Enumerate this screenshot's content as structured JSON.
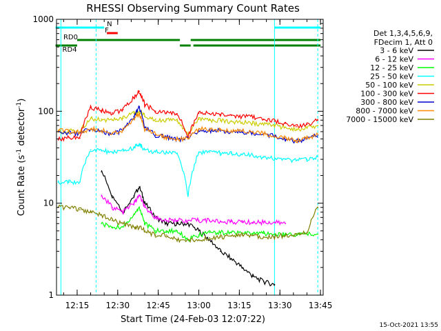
{
  "chart_data": {
    "type": "line",
    "title": "RHESSI Observing Summary Count Rates",
    "xlabel": "Start Time (24-Feb-03 12:07:22)",
    "ylabel": "Count Rate (s⁻¹ detector⁻¹)",
    "ylabel_main": "Count Rate (s",
    "ylabel_sup1": "-1",
    "ylabel_mid": " detector",
    "ylabel_sup2": "-1",
    "ylabel_end": ")",
    "x_scale": "time",
    "x_range": [
      "12:07:22",
      "13:46:00"
    ],
    "x_ticks": [
      "12:15",
      "12:30",
      "12:45",
      "13:00",
      "13:15",
      "13:30",
      "13:45"
    ],
    "y_scale": "log",
    "y_range": [
      1,
      1000
    ],
    "y_ticks": [
      "1",
      "10",
      "100",
      "1000"
    ],
    "grid": false,
    "legend_header": [
      "Det 1,3,4,5,6,9,",
      "FDecim 1, Att 0"
    ],
    "legend_position": "right",
    "timestamp": "15-Oct-2021 13:55",
    "flags": [
      {
        "label": "N",
        "color": "#00ffff",
        "intervals": [
          [
            "12:07",
            "12:25"
          ],
          [
            "13:28",
            "13:45"
          ]
        ]
      },
      {
        "label": "F",
        "color": "#ff0000",
        "intervals": [
          [
            "12:26",
            "12:30"
          ]
        ]
      },
      {
        "label": "RD0",
        "color": "#008000",
        "intervals": [
          [
            "12:15",
            "12:53"
          ],
          [
            "12:57",
            "13:45"
          ]
        ]
      },
      {
        "label": "RD4",
        "color": "#008000",
        "intervals": [
          [
            "12:07",
            "12:15"
          ],
          [
            "12:53",
            "12:57"
          ],
          [
            "12:58",
            "13:45"
          ]
        ]
      }
    ],
    "vlines": [
      {
        "time": "12:09",
        "style": "solid"
      },
      {
        "time": "12:22",
        "style": "dashed"
      },
      {
        "time": "13:28",
        "style": "solid"
      },
      {
        "time": "13:44",
        "style": "dashed"
      }
    ],
    "x": [
      "12:08",
      "12:12",
      "12:16",
      "12:20",
      "12:24",
      "12:28",
      "12:32",
      "12:36",
      "12:38",
      "12:40",
      "12:44",
      "12:48",
      "12:52",
      "12:56",
      "13:00",
      "13:04",
      "13:08",
      "13:12",
      "13:16",
      "13:20",
      "13:24",
      "13:28",
      "13:32",
      "13:36",
      "13:40",
      "13:44"
    ],
    "series": [
      {
        "name": "3 - 6 keV",
        "color": "#000000",
        "values": [
          null,
          null,
          null,
          null,
          22,
          12,
          8,
          12,
          15,
          10,
          7,
          6,
          6,
          6,
          5,
          4,
          3,
          2.5,
          2,
          1.6,
          1.4,
          1.3,
          null,
          null,
          null,
          null
        ]
      },
      {
        "name": "6 - 12 keV",
        "color": "#ff00ff",
        "values": [
          null,
          null,
          null,
          null,
          12,
          9,
          8,
          10,
          12,
          9,
          7,
          6.5,
          6.5,
          6.5,
          6.5,
          6.5,
          6.3,
          6.3,
          6.2,
          6.2,
          6.2,
          6.2,
          6,
          null,
          null,
          null
        ]
      },
      {
        "name": "12 - 25 keV",
        "color": "#00ff00",
        "values": [
          null,
          null,
          null,
          null,
          6,
          5.5,
          5.5,
          7.5,
          9,
          6,
          5,
          5,
          5,
          4,
          4.5,
          4.8,
          4.8,
          4.8,
          4.7,
          4.7,
          4.7,
          4.6,
          4.6,
          4.6,
          4.6,
          4.6
        ]
      },
      {
        "name": "25 - 50 keV",
        "color": "#00ffff",
        "values": [
          17,
          17,
          17,
          38,
          37,
          36,
          37,
          40,
          44,
          38,
          36,
          36,
          35,
          12,
          36,
          36,
          35,
          35,
          34,
          33,
          32,
          31,
          30,
          29,
          30,
          32
        ]
      },
      {
        "name": "50 - 100 keV",
        "color": "#cccc00",
        "values": [
          60,
          61,
          60,
          84,
          82,
          80,
          84,
          95,
          100,
          88,
          82,
          80,
          78,
          55,
          82,
          80,
          79,
          78,
          76,
          74,
          72,
          70,
          67,
          64,
          66,
          70
        ]
      },
      {
        "name": "100 - 300 keV",
        "color": "#ff0000",
        "values": [
          50,
          52,
          51,
          110,
          102,
          96,
          104,
          140,
          165,
          118,
          100,
          97,
          94,
          52,
          95,
          94,
          92,
          90,
          88,
          86,
          82,
          78,
          74,
          68,
          72,
          80
        ]
      },
      {
        "name": "300 - 800 keV",
        "color": "#0000cc",
        "values": [
          60,
          58,
          58,
          64,
          60,
          57,
          62,
          88,
          110,
          66,
          55,
          52,
          50,
          50,
          62,
          62,
          61,
          60,
          59,
          58,
          56,
          54,
          49,
          47,
          50,
          55
        ]
      },
      {
        "name": "800 - 7000 keV",
        "color": "#ff8800",
        "values": [
          62,
          60,
          60,
          64,
          62,
          58,
          62,
          82,
          95,
          64,
          56,
          52,
          50,
          50,
          64,
          64,
          63,
          62,
          61,
          60,
          57,
          55,
          51,
          48,
          51,
          56
        ]
      },
      {
        "name": "7000 - 15000 keV",
        "color": "#808000",
        "values": [
          9,
          9,
          8.5,
          8,
          7.5,
          6.5,
          6,
          5.5,
          5.5,
          5,
          4.5,
          4.5,
          4,
          4,
          4,
          4.2,
          4.3,
          4.4,
          4.5,
          4.5,
          4.3,
          4.3,
          4.5,
          4.5,
          4.8,
          9
        ]
      }
    ]
  }
}
